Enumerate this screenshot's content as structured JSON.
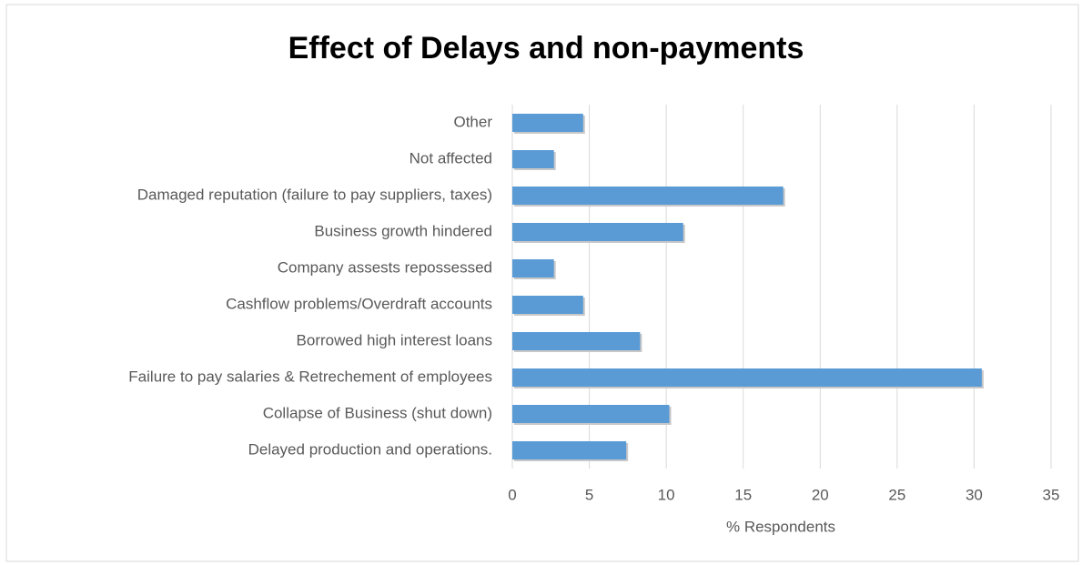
{
  "chart_data": {
    "type": "hbar",
    "title": "Effect of Delays and non-payments",
    "x_label": "% Respondents",
    "categories": [
      "Other",
      "Not affected",
      "Damaged reputation (failure to pay suppliers, taxes)",
      "Business growth hindered ",
      "Company assests repossessed",
      "Cashflow problems/Overdraft accounts",
      "Borrowed high interest loans",
      "Failure to pay salaries & Retrechement of employees",
      "Collapse of Business (shut down)",
      "Delayed production and operations."
    ],
    "values": [
      4.6,
      2.7,
      17.6,
      11.1,
      2.7,
      4.6,
      8.3,
      30.5,
      10.2,
      7.4
    ],
    "color": "#5b9bd5",
    "xlim": [
      0,
      35
    ],
    "xticks": [
      0,
      5,
      10,
      15,
      20,
      25,
      30,
      35
    ],
    "grid": true
  }
}
